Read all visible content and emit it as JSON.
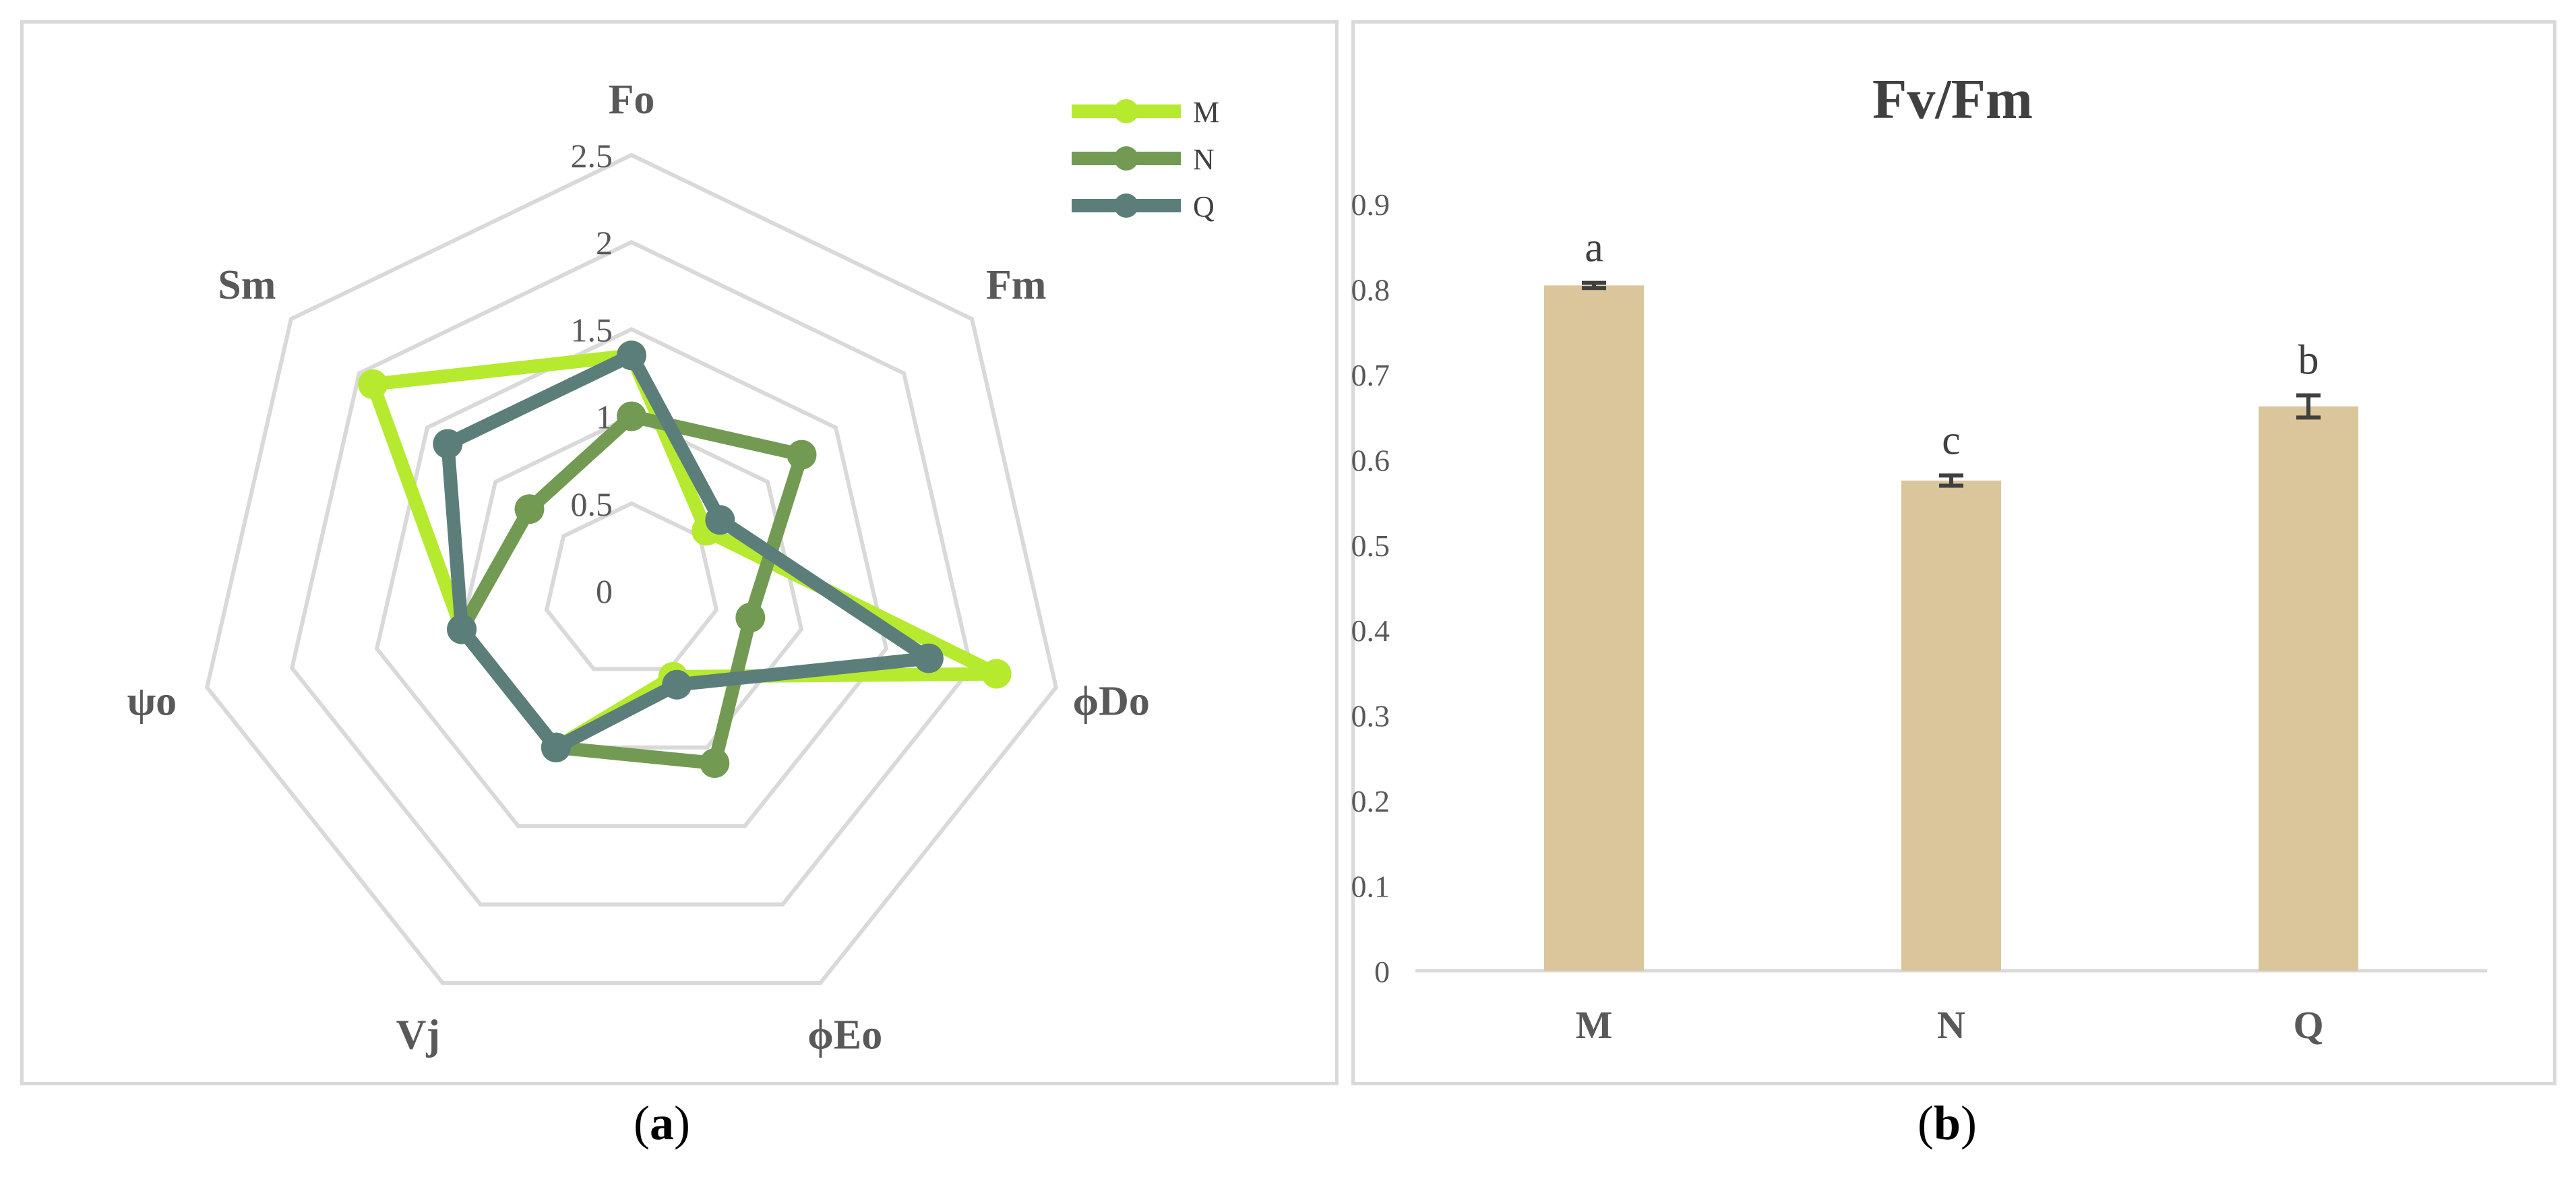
{
  "captions": {
    "a": "a",
    "b": "b"
  },
  "colors": {
    "M": "#b5ea2f",
    "N": "#739a53",
    "Q": "#5b7e7a",
    "bar": "#dbc59a",
    "grid": "#d9d9d9",
    "axis_text": "#595959",
    "label_text": "#404040",
    "error": "#404040"
  },
  "chart_data": [
    {
      "type": "radar",
      "axes": [
        "Fo",
        "Fm",
        "ϕDo",
        "ϕEo",
        "Vj",
        "ψo",
        "Sm"
      ],
      "rticks": [
        "0",
        "0.5",
        "1",
        "1.5",
        "2",
        "2.5"
      ],
      "rlim": [
        0,
        2.5
      ],
      "legend": "top-right",
      "grid": true,
      "series": [
        {
          "name": "M",
          "values": [
            1.35,
            0.55,
            2.15,
            0.55,
            1.0,
            1.0,
            1.9
          ]
        },
        {
          "name": "N",
          "values": [
            1.0,
            1.25,
            0.7,
            1.1,
            1.0,
            1.0,
            0.75
          ]
        },
        {
          "name": "Q",
          "values": [
            1.35,
            0.65,
            1.75,
            0.6,
            1.0,
            1.0,
            1.35
          ]
        }
      ]
    },
    {
      "type": "bar",
      "title": "Fv/Fm",
      "categories": [
        "M",
        "N",
        "Q"
      ],
      "values": [
        0.804,
        0.575,
        0.662
      ],
      "errors": [
        0.003,
        0.006,
        0.013
      ],
      "annotations": [
        "a",
        "c",
        "b"
      ],
      "ylim": [
        0,
        0.9
      ],
      "yticks": [
        "0",
        "0.1",
        "0.2",
        "0.3",
        "0.4",
        "0.5",
        "0.6",
        "0.7",
        "0.8",
        "0.9"
      ],
      "xlabel": "",
      "ylabel": "",
      "grid": false
    }
  ]
}
